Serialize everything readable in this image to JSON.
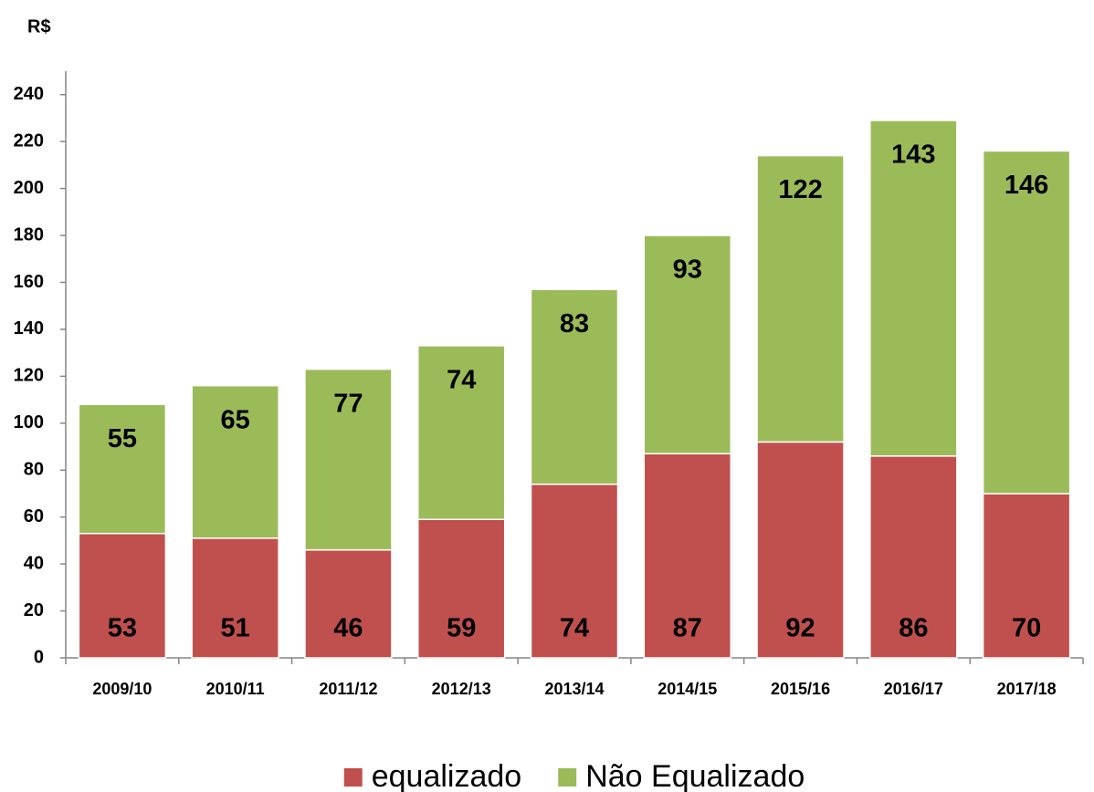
{
  "chart_data": {
    "type": "stacked-bar",
    "y_label": "R$",
    "categories": [
      "2009/10",
      "2010/11",
      "2011/12",
      "2012/13",
      "2013/14",
      "2014/15",
      "2015/16",
      "2016/17",
      "2017/18"
    ],
    "series": [
      {
        "name": "equalizado",
        "color": "#c0504d",
        "values": [
          53,
          51,
          46,
          59,
          74,
          87,
          92,
          86,
          70
        ]
      },
      {
        "name": "Não Equalizado",
        "color": "#9bbb59",
        "values": [
          55,
          65,
          77,
          74,
          83,
          93,
          122,
          143,
          146
        ]
      }
    ],
    "ylim": [
      0,
      250
    ],
    "yticks": [
      0,
      20,
      40,
      60,
      80,
      100,
      120,
      140,
      160,
      180,
      200,
      220,
      240
    ],
    "legend": "bottom"
  }
}
